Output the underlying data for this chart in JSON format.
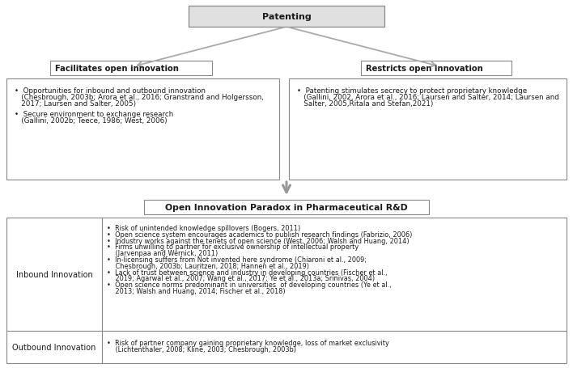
{
  "title": "Patenting",
  "facilitates_label": "Facilitates open innovation",
  "restricts_label": "Restricts open innovation",
  "paradox_label": "Open Innovation Paradox in Pharmaceutical R&D",
  "facilitates_bullet1_line1": "•  Opportunities for inbound and outbound innovation",
  "facilitates_bullet1_line2": "   (Chesbrough, 2003b; Arora et al., 2016; Granstrand and Holgersson,",
  "facilitates_bullet1_line3": "   2017; Laursen and Salter, 2005)",
  "facilitates_bullet2_line1": "•  Secure environment to exchange research",
  "facilitates_bullet2_line2": "   (Gallini, 2002b; Teece, 1986; West, 2006)",
  "restricts_bullet1_line1": "•  Patenting stimulates secrecy to protect proprietary knowledge",
  "restricts_bullet1_line2": "   (Gallini, 2002, Arora et al., 2016; Laursen and Salter, 2014; Laursen and",
  "restricts_bullet1_line3": "   Salter, 2005,Ritala and Stefan,2021)",
  "inbound_label": "Inbound Innovation",
  "inbound_bullets": [
    "•  Risk of unintended knowledge spillovers (Bogers, 2011)",
    "•  Open science system encourages academics to publish research findings (Fabrizio, 2006)",
    "•  Industry works against the tenets of open science (West, 2006; Walsh and Huang, 2014)",
    "•  Firms unwilling to partner for exclusive ownership of intellectual property",
    "    (Jarvenpaa and Wernick, 2011)",
    "•  In-licensing suffers from Not invented here syndrome (Chiaroni et al., 2009;",
    "    Chesbrough, 2003b; Lauritzen, 2018; Hannen et al., 2019)",
    "•  Lack of trust between science and industry in developing countries (Fischer et al.,",
    "    2019; Agarwal et al., 2007; Wang et al., 2017; Ye et al., 2013a; Srinivas, 2004)",
    "•  Open science norms predominant in universities  of developing countries (Ye et al.,",
    "    2013; Walsh and Huang, 2014; Fischer et al., 2018)"
  ],
  "outbound_label": "Outbound Innovation",
  "outbound_bullets": [
    "•  Risk of partner company gaining proprietary knowledge, loss of market exclusivity",
    "    (Lichtenthaler, 2008; Kline, 2003; Chesbrough, 2003b)"
  ],
  "bg_color": "#ffffff",
  "top_box_fill": "#e0e0e0",
  "box_edge": "#888888",
  "text_color": "#1a1a1a",
  "arrow_color": "#aaaaaa"
}
